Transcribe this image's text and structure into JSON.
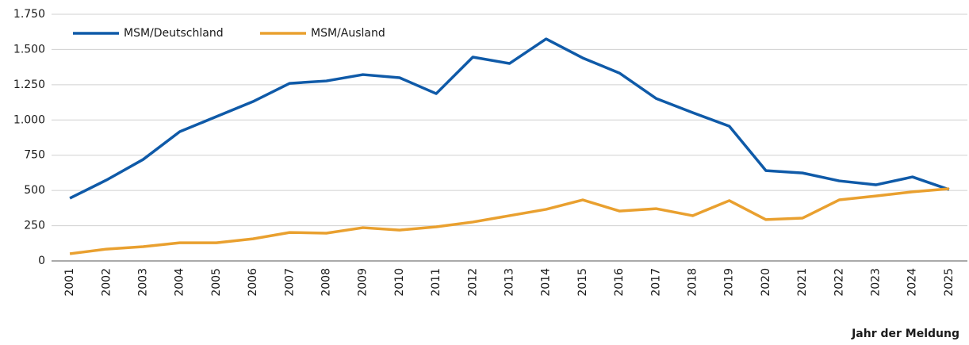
{
  "chart_data": {
    "type": "line",
    "x_label": "Jahr der Meldung",
    "categories": [
      "2001",
      "2002",
      "2003",
      "2004",
      "2005",
      "2006",
      "2007",
      "2008",
      "2009",
      "2010",
      "2011",
      "2012",
      "2013",
      "2014",
      "2015",
      "2016",
      "2017",
      "2018",
      "2019",
      "2020",
      "2021",
      "2022",
      "2023",
      "2024",
      "2025"
    ],
    "series": [
      {
        "name": "MSM/Deutschland",
        "color": "#0f5aa8",
        "values": [
          445,
          574,
          720,
          917,
          1024,
          1131,
          1260,
          1277,
          1322,
          1300,
          1187,
          1446,
          1401,
          1575,
          1440,
          1333,
          1153,
          1052,
          956,
          641,
          624,
          568,
          540,
          596,
          506
        ]
      },
      {
        "name": "MSM/Ausland",
        "color": "#e9a02f",
        "values": [
          51,
          84,
          101,
          129,
          129,
          157,
          202,
          197,
          236,
          219,
          242,
          276,
          321,
          366,
          433,
          354,
          371,
          321,
          428,
          293,
          304,
          433,
          461,
          490,
          512
        ]
      }
    ],
    "ylim": [
      0,
      1750
    ],
    "yticks": [
      0,
      250,
      500,
      750,
      {
        "value": 1000,
        "label": "1.000"
      },
      {
        "value": 1250,
        "label": "1.250"
      },
      {
        "value": 1500,
        "label": "1.500"
      },
      {
        "value": 1750,
        "label": "1.750"
      }
    ],
    "grid": true,
    "legend": "top-left"
  }
}
